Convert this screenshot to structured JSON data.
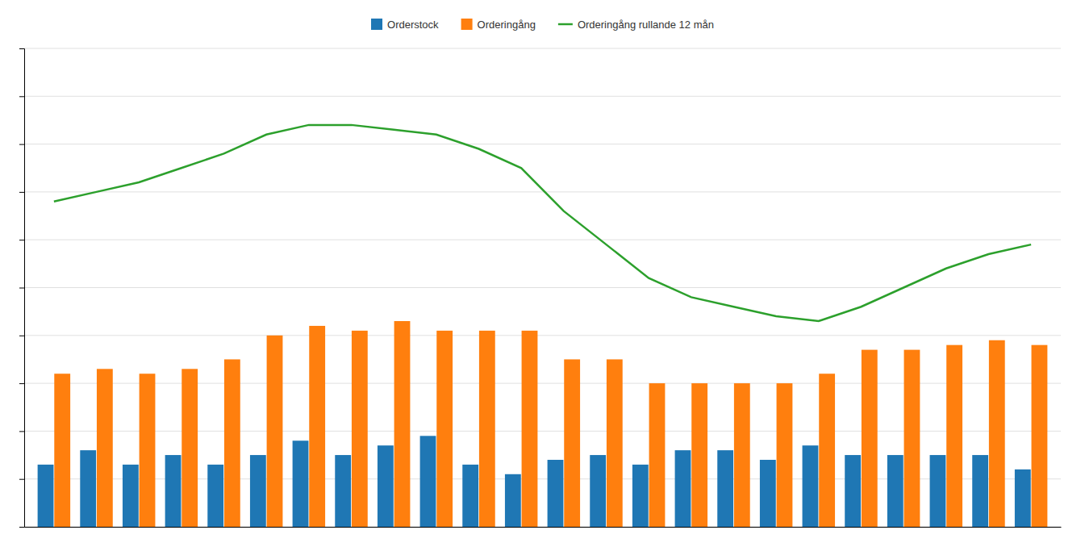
{
  "chart_data": {
    "type": "bar",
    "categories": [
      null,
      null,
      null,
      null,
      null,
      null,
      null,
      null,
      null,
      null,
      null,
      null,
      null,
      null,
      null,
      null,
      null,
      null,
      null,
      null,
      null,
      null,
      null,
      null
    ],
    "series": [
      {
        "name": "Orderstock",
        "type": "bar",
        "values": [
          13,
          16,
          13,
          15,
          13,
          15,
          18,
          15,
          17,
          19,
          13,
          11,
          14,
          15,
          13,
          16,
          16,
          14,
          17,
          15,
          15,
          15,
          15,
          12
        ]
      },
      {
        "name": "Orderingång",
        "type": "bar",
        "values": [
          32,
          33,
          32,
          33,
          35,
          40,
          42,
          41,
          43,
          41,
          41,
          41,
          35,
          35,
          30,
          30,
          30,
          30,
          32,
          37,
          37,
          38,
          39,
          38
        ]
      },
      {
        "name": "Orderingång rullande 12 mån",
        "type": "line",
        "values": [
          68,
          70,
          72,
          75,
          78,
          82,
          84,
          84,
          83,
          82,
          79,
          75,
          66,
          59,
          52,
          48,
          46,
          44,
          43,
          46,
          50,
          54,
          57,
          59
        ]
      }
    ],
    "ylim": [
      0,
      100
    ],
    "yticks": [
      0,
      10,
      20,
      30,
      40,
      50,
      60,
      70,
      80,
      90,
      100
    ],
    "grid": true,
    "tick_labels": false,
    "legend": "top"
  }
}
